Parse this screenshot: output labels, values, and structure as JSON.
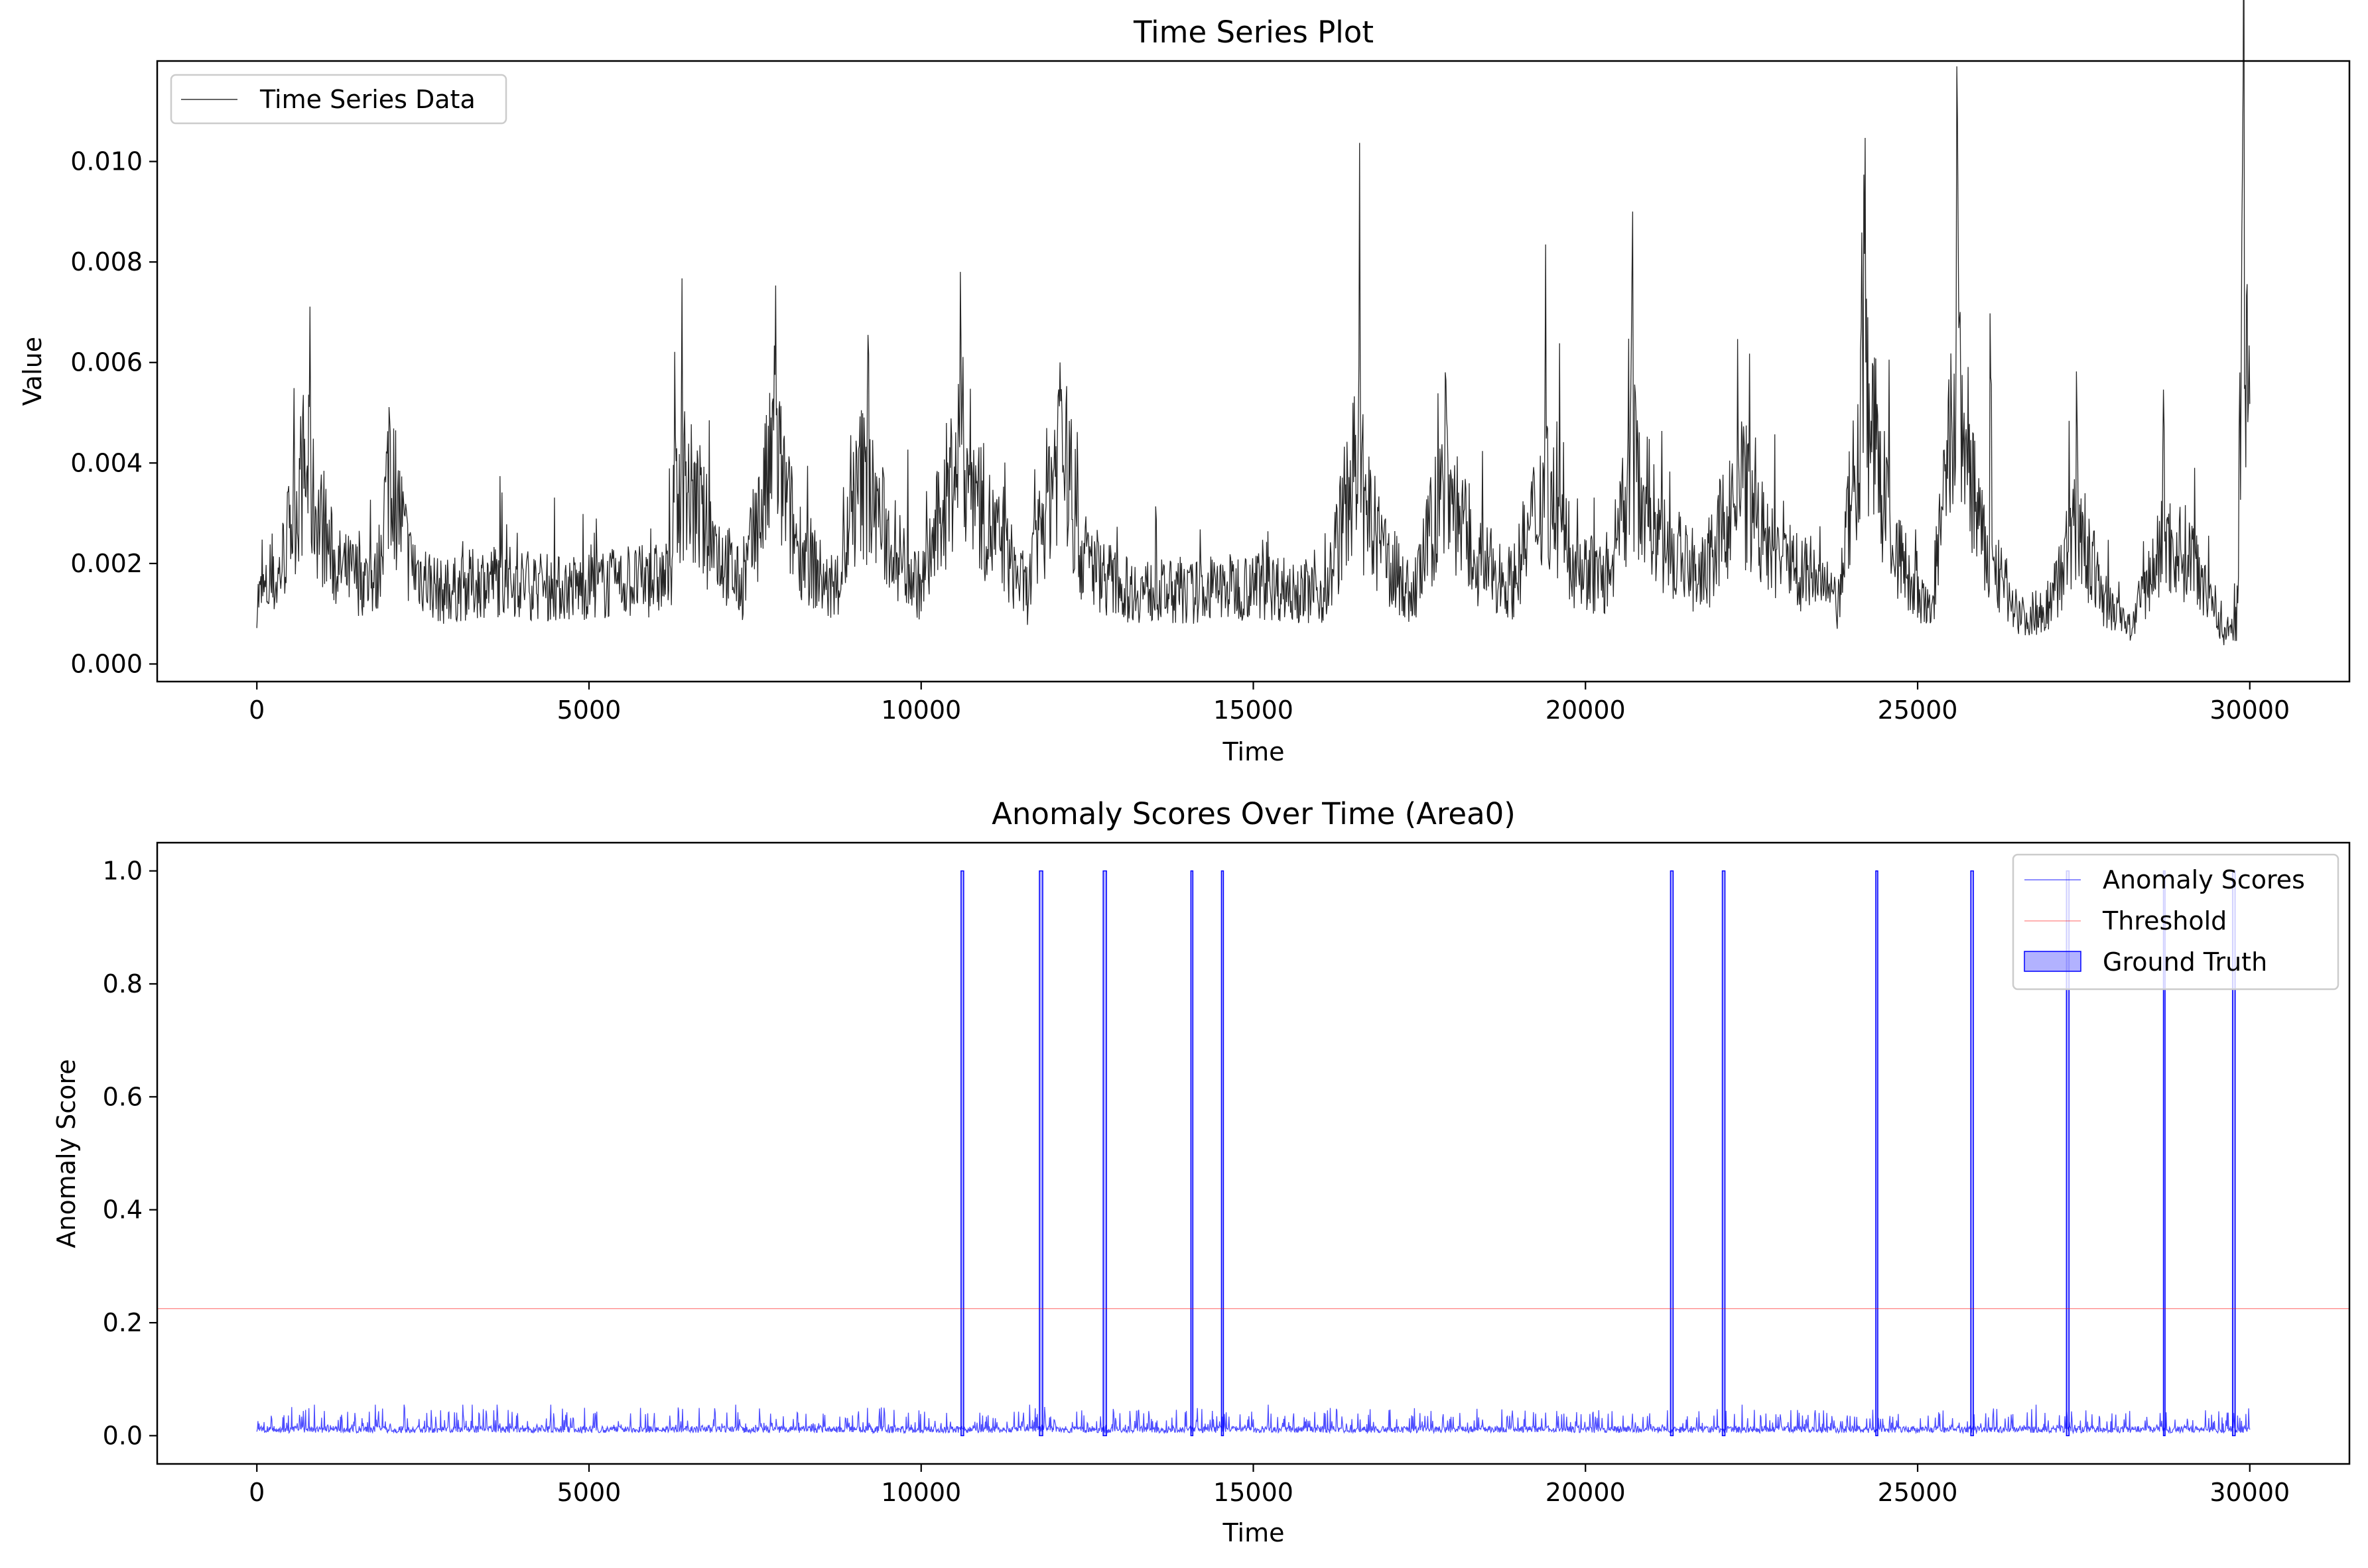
{
  "chart_data": [
    {
      "type": "line",
      "title": "Time Series Plot",
      "xlabel": "Time",
      "ylabel": "Value",
      "xlim": [
        -1500,
        31500
      ],
      "ylim": [
        -0.00035,
        0.012
      ],
      "xticks": [
        0,
        5000,
        10000,
        15000,
        20000,
        25000,
        30000
      ],
      "xtick_labels": [
        "0",
        "5000",
        "10000",
        "15000",
        "20000",
        "25000",
        "30000"
      ],
      "yticks": [
        0.0,
        0.002,
        0.004,
        0.006,
        0.008,
        0.01
      ],
      "ytick_labels": [
        "0.000",
        "0.002",
        "0.004",
        "0.006",
        "0.008",
        "0.010"
      ],
      "legend_position": "top-left",
      "legend": [
        "Time Series Data"
      ],
      "grid": false,
      "series": [
        {
          "name": "Time Series Data",
          "color": "#000000",
          "x_range": [
            0,
            30000
          ],
          "baseline": [
            [
              0,
              0.0013
            ],
            [
              300,
              0.0016
            ],
            [
              700,
              0.0038
            ],
            [
              900,
              0.003
            ],
            [
              1200,
              0.0019
            ],
            [
              1800,
              0.0016
            ],
            [
              2000,
              0.004
            ],
            [
              2300,
              0.002
            ],
            [
              2800,
              0.0014
            ],
            [
              3500,
              0.0017
            ],
            [
              4500,
              0.0015
            ],
            [
              5500,
              0.0016
            ],
            [
              6200,
              0.0017
            ],
            [
              6400,
              0.0038
            ],
            [
              6700,
              0.0028
            ],
            [
              7300,
              0.0015
            ],
            [
              7800,
              0.0042
            ],
            [
              8100,
              0.0025
            ],
            [
              8700,
              0.0013
            ],
            [
              9100,
              0.0037
            ],
            [
              9500,
              0.0025
            ],
            [
              10000,
              0.0015
            ],
            [
              10600,
              0.0044
            ],
            [
              11000,
              0.0028
            ],
            [
              11600,
              0.0014
            ],
            [
              12100,
              0.0046
            ],
            [
              12400,
              0.0022
            ],
            [
              13000,
              0.0015
            ],
            [
              14000,
              0.0014
            ],
            [
              15000,
              0.0016
            ],
            [
              16100,
              0.0014
            ],
            [
              16500,
              0.0038
            ],
            [
              16800,
              0.0025
            ],
            [
              17400,
              0.0013
            ],
            [
              17900,
              0.0037
            ],
            [
              18300,
              0.0021
            ],
            [
              18900,
              0.0016
            ],
            [
              19400,
              0.0036
            ],
            [
              19800,
              0.002
            ],
            [
              20400,
              0.0016
            ],
            [
              20700,
              0.004
            ],
            [
              21200,
              0.0023
            ],
            [
              21800,
              0.0017
            ],
            [
              22300,
              0.0035
            ],
            [
              22800,
              0.0022
            ],
            [
              23500,
              0.0017
            ],
            [
              23800,
              0.0011
            ],
            [
              24200,
              0.0055
            ],
            [
              24600,
              0.0025
            ],
            [
              25000,
              0.0013
            ],
            [
              25200,
              0.001
            ],
            [
              25600,
              0.0055
            ],
            [
              26000,
              0.0022
            ],
            [
              26600,
              0.0009
            ],
            [
              27000,
              0.0012
            ],
            [
              27400,
              0.0028
            ],
            [
              27800,
              0.0013
            ],
            [
              28200,
              0.0007
            ],
            [
              28700,
              0.0024
            ],
            [
              29200,
              0.0021
            ],
            [
              29600,
              0.0006
            ],
            [
              29800,
              0.0008
            ],
            [
              29900,
              0.0075
            ],
            [
              30000,
              0.0045
            ]
          ],
          "peaks": [
            [
              790,
              0.0057
            ],
            [
              2000,
              0.0047
            ],
            [
              6300,
              0.0053
            ],
            [
              7800,
              0.007
            ],
            [
              9200,
              0.0065
            ],
            [
              10600,
              0.0057
            ],
            [
              12100,
              0.0058
            ],
            [
              16600,
              0.0064
            ],
            [
              17900,
              0.0051
            ],
            [
              19400,
              0.0059
            ],
            [
              20700,
              0.0079
            ],
            [
              22300,
              0.0051
            ],
            [
              24200,
              0.0099
            ],
            [
              25600,
              0.0101
            ],
            [
              26100,
              0.0063
            ],
            [
              27400,
              0.0049
            ],
            [
              28700,
              0.0052
            ],
            [
              29900,
              0.0114
            ]
          ]
        }
      ]
    },
    {
      "type": "line",
      "title": "Anomaly Scores Over Time (Area0)",
      "xlabel": "Time",
      "ylabel": "Anomaly Score",
      "xlim": [
        -1500,
        31500
      ],
      "ylim": [
        -0.05,
        1.05
      ],
      "xticks": [
        0,
        5000,
        10000,
        15000,
        20000,
        25000,
        30000
      ],
      "xtick_labels": [
        "0",
        "5000",
        "10000",
        "15000",
        "20000",
        "25000",
        "30000"
      ],
      "yticks": [
        0.0,
        0.2,
        0.4,
        0.6,
        0.8,
        1.0
      ],
      "ytick_labels": [
        "0.0",
        "0.2",
        "0.4",
        "0.6",
        "0.8",
        "1.0"
      ],
      "legend_position": "top-right",
      "legend": [
        "Anomaly Scores",
        "Threshold",
        "Ground Truth"
      ],
      "grid": false,
      "series": [
        {
          "name": "Anomaly Scores",
          "color": "#0000ff",
          "x_range": [
            0,
            30000
          ],
          "typical_range": [
            0.005,
            0.045
          ],
          "max_noise": 0.055
        },
        {
          "name": "Threshold",
          "color": "#ff0000",
          "value": 0.225
        },
        {
          "name": "Ground Truth",
          "color": "#0000ff",
          "type": "filled-spans",
          "height": 1.0,
          "spans": [
            [
              10600,
              10640
            ],
            [
              11780,
              11830
            ],
            [
              12740,
              12790
            ],
            [
              14060,
              14090
            ],
            [
              14520,
              14550
            ],
            [
              21280,
              21320
            ],
            [
              22060,
              22100
            ],
            [
              24370,
              24400
            ],
            [
              25800,
              25840
            ],
            [
              27240,
              27280
            ],
            [
              28700,
              28720
            ],
            [
              29740,
              29780
            ]
          ]
        }
      ]
    }
  ]
}
